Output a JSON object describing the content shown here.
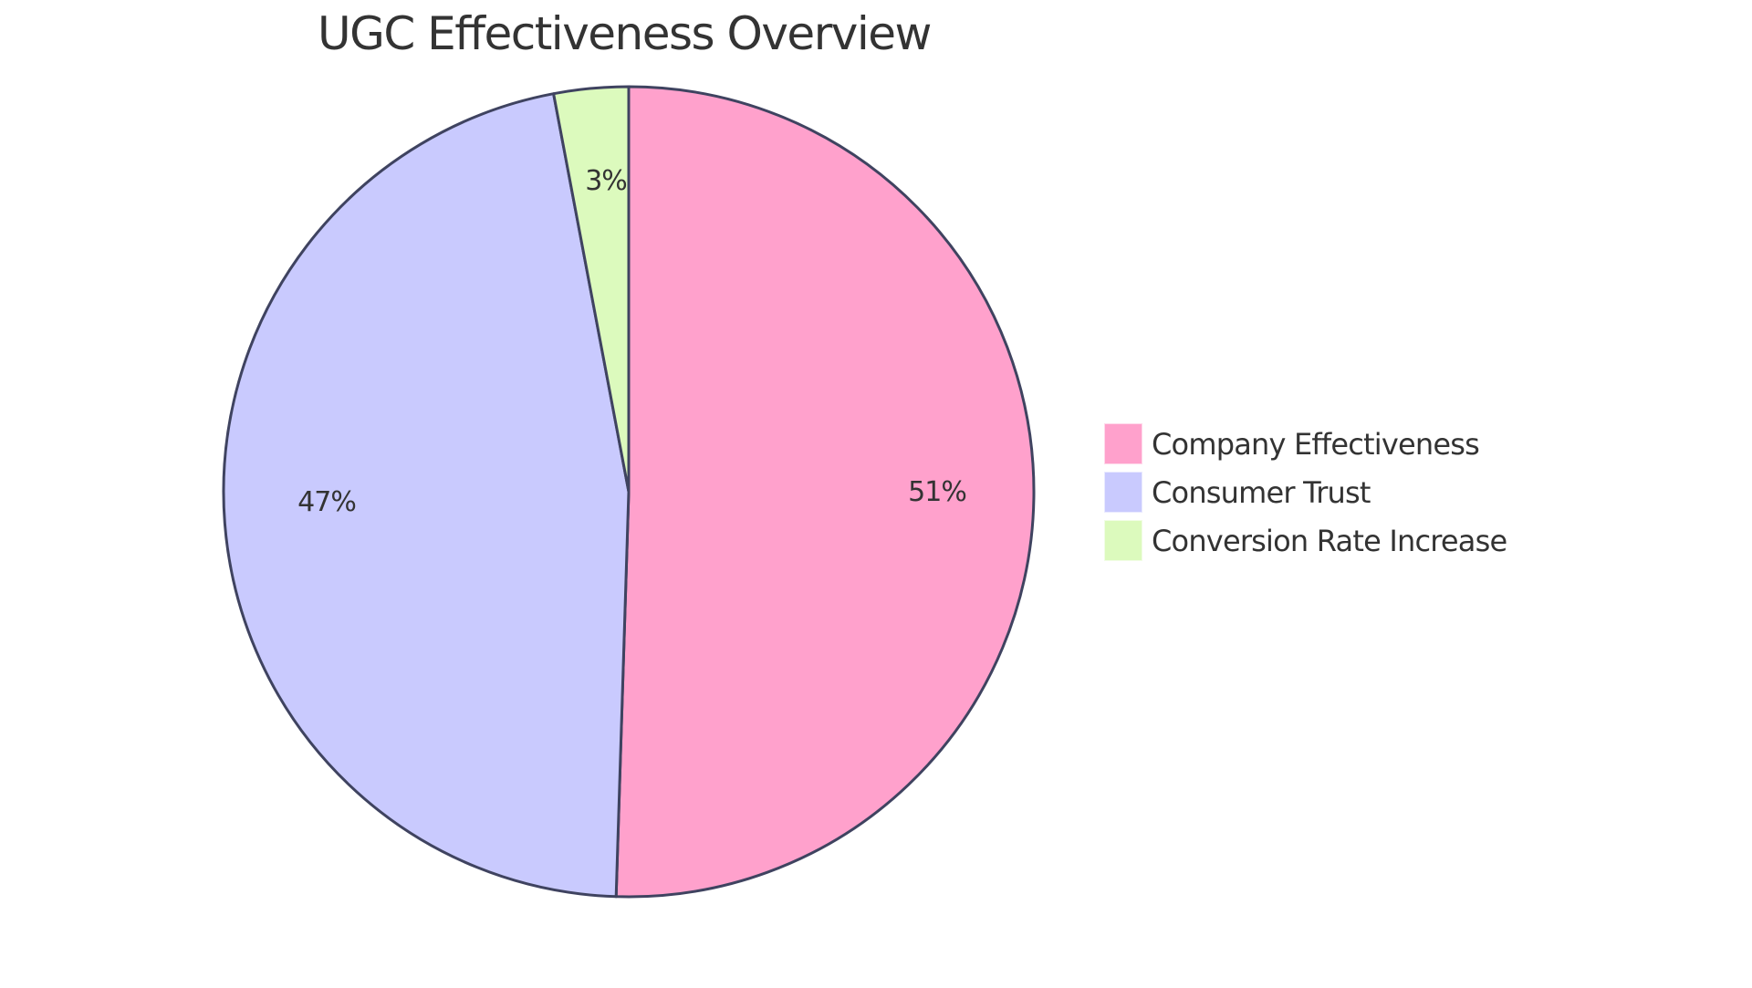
{
  "chart_data": {
    "type": "pie",
    "title": "UGC Effectiveness Overview",
    "categories": [
      "Company Effectiveness",
      "Consumer Trust",
      "Conversion Rate Increase"
    ],
    "values": [
      51,
      47,
      3
    ],
    "labels": [
      "51%",
      "47%",
      "3%"
    ],
    "colors": [
      "#FFA1CC",
      "#C9CAFE",
      "#DCFABD"
    ],
    "stroke_color": "#3F4360",
    "start_angle": "12 o'clock, clockwise",
    "legend_position": "right"
  },
  "title": "UGC Effectiveness Overview",
  "slices": [
    {
      "label": "51%",
      "name": "Company Effectiveness",
      "color": "#FFA1CC"
    },
    {
      "label": "47%",
      "name": "Consumer Trust",
      "color": "#C9CAFE"
    },
    {
      "label": "3%",
      "name": "Conversion Rate Increase",
      "color": "#DCFABD"
    }
  ],
  "legend": [
    {
      "label": "Company Effectiveness",
      "color": "#FFA1CC"
    },
    {
      "label": "Consumer Trust",
      "color": "#C9CAFE"
    },
    {
      "label": "Conversion Rate Increase",
      "color": "#DCFABD"
    }
  ]
}
